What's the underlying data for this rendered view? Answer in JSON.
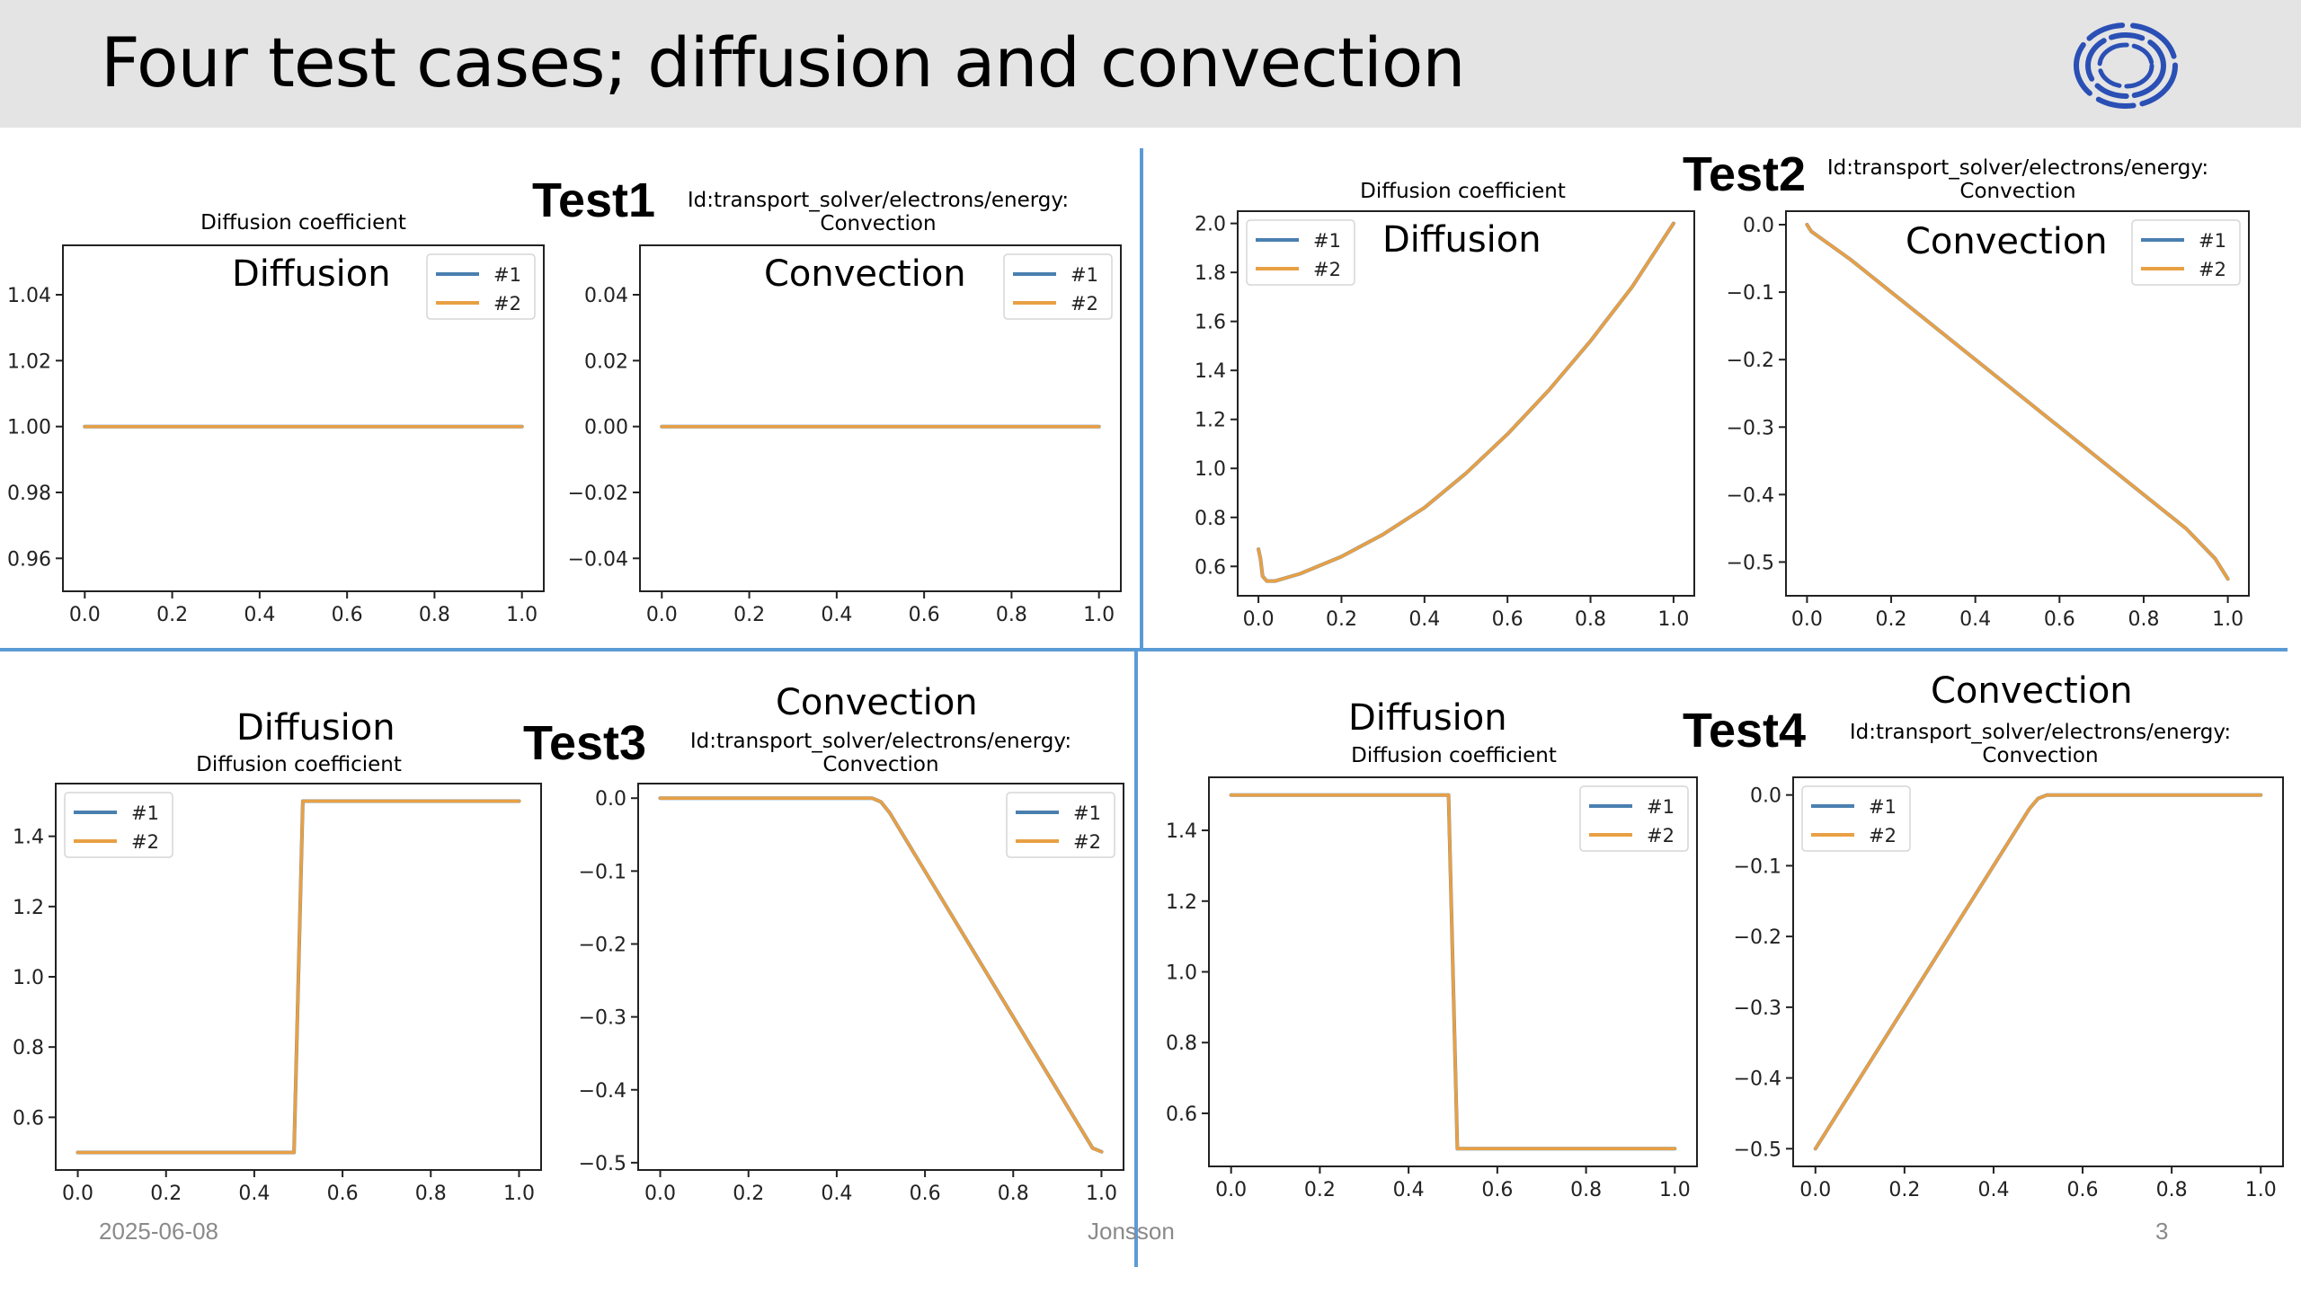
{
  "slide": {
    "title": "Four test cases; diffusion and convection",
    "footer_date": "2025-06-08",
    "footer_author": "Jonsson",
    "page_number": "3",
    "logo_icon": "ring-logo-icon",
    "accent_color": "#5b9bd5"
  },
  "quadrants": [
    {
      "test_label": "Test1",
      "diffusion_caption": "Diffusion coefficient",
      "diffusion_inlay": "Diffusion",
      "convection_inlay": "Convection",
      "convection_ids_line1": "Id:transport_solver/electrons/energy:",
      "convection_ids_line2": "Convection"
    },
    {
      "test_label": "Test2",
      "diffusion_caption": "Diffusion coefficient",
      "diffusion_inlay": "Diffusion",
      "convection_inlay": "Convection",
      "convection_ids_line1": "Id:transport_solver/electrons/energy:",
      "convection_ids_line2": "Convection"
    },
    {
      "test_label": "Test3",
      "diffusion_heading": "Diffusion",
      "diffusion_caption": "Diffusion coefficient",
      "convection_heading": "Convection",
      "convection_ids_line1": "Id:transport_solver/electrons/energy:",
      "convection_ids_line2": "Convection"
    },
    {
      "test_label": "Test4",
      "diffusion_heading": "Diffusion",
      "diffusion_caption": "Diffusion coefficient",
      "convection_heading": "Convection",
      "convection_ids_line1": "Id:transport_solver/electrons/energy:",
      "convection_ids_line2": "Convection"
    }
  ],
  "chart_data": [
    {
      "id": "t1_diff",
      "type": "line",
      "xlim": [
        -0.05,
        1.05
      ],
      "ylim": [
        0.95,
        1.055
      ],
      "xticks": [
        0.0,
        0.2,
        0.4,
        0.6,
        0.8,
        1.0
      ],
      "xtick_labels": [
        "0.0",
        "0.2",
        "0.4",
        "0.6",
        "0.8",
        "1.0"
      ],
      "yticks": [
        0.96,
        0.98,
        1.0,
        1.02,
        1.04
      ],
      "ytick_labels": [
        "0.96",
        "0.98",
        "1.00",
        "1.02",
        "1.04"
      ],
      "legend": [
        "#1",
        "#2"
      ],
      "legend_position": "top-right",
      "colors": [
        "#4a7fb0",
        "#e8a044"
      ],
      "series": [
        {
          "name": "#1",
          "x": [
            0,
            1
          ],
          "y": [
            1.0,
            1.0
          ]
        },
        {
          "name": "#2",
          "x": [
            0,
            1
          ],
          "y": [
            1.0,
            1.0
          ]
        }
      ]
    },
    {
      "id": "t1_conv",
      "type": "line",
      "xlim": [
        -0.05,
        1.05
      ],
      "ylim": [
        -0.05,
        0.055
      ],
      "xticks": [
        0.0,
        0.2,
        0.4,
        0.6,
        0.8,
        1.0
      ],
      "xtick_labels": [
        "0.0",
        "0.2",
        "0.4",
        "0.6",
        "0.8",
        "1.0"
      ],
      "yticks": [
        -0.04,
        -0.02,
        0.0,
        0.02,
        0.04
      ],
      "ytick_labels": [
        "−0.04",
        "−0.02",
        "0.00",
        "0.02",
        "0.04"
      ],
      "legend": [
        "#1",
        "#2"
      ],
      "legend_position": "top-right",
      "colors": [
        "#4a7fb0",
        "#e8a044"
      ],
      "series": [
        {
          "name": "#1",
          "x": [
            0,
            1
          ],
          "y": [
            0.0,
            0.0
          ]
        },
        {
          "name": "#2",
          "x": [
            0,
            1
          ],
          "y": [
            0.0,
            0.0
          ]
        }
      ]
    },
    {
      "id": "t2_diff",
      "type": "line",
      "xlim": [
        -0.05,
        1.05
      ],
      "ylim": [
        0.48,
        2.05
      ],
      "xticks": [
        0.0,
        0.2,
        0.4,
        0.6,
        0.8,
        1.0
      ],
      "xtick_labels": [
        "0.0",
        "0.2",
        "0.4",
        "0.6",
        "0.8",
        "1.0"
      ],
      "yticks": [
        0.6,
        0.8,
        1.0,
        1.2,
        1.4,
        1.6,
        1.8,
        2.0
      ],
      "ytick_labels": [
        "0.6",
        "0.8",
        "1.0",
        "1.2",
        "1.4",
        "1.6",
        "1.8",
        "2.0"
      ],
      "legend": [
        "#1",
        "#2"
      ],
      "legend_position": "top-left",
      "colors": [
        "#4a7fb0",
        "#e8a044"
      ],
      "series": [
        {
          "name": "#1",
          "x": [
            0.0,
            0.005,
            0.01,
            0.02,
            0.04,
            0.1,
            0.2,
            0.3,
            0.4,
            0.5,
            0.6,
            0.7,
            0.8,
            0.9,
            1.0
          ],
          "y": [
            0.67,
            0.63,
            0.56,
            0.54,
            0.54,
            0.57,
            0.64,
            0.73,
            0.84,
            0.98,
            1.14,
            1.32,
            1.52,
            1.74,
            2.0
          ]
        },
        {
          "name": "#2",
          "x": [
            0.0,
            0.005,
            0.01,
            0.02,
            0.04,
            0.1,
            0.2,
            0.3,
            0.4,
            0.5,
            0.6,
            0.7,
            0.8,
            0.9,
            1.0
          ],
          "y": [
            0.67,
            0.63,
            0.56,
            0.54,
            0.54,
            0.57,
            0.64,
            0.73,
            0.84,
            0.98,
            1.14,
            1.32,
            1.52,
            1.74,
            2.0
          ]
        }
      ]
    },
    {
      "id": "t2_conv",
      "type": "line",
      "xlim": [
        -0.05,
        1.05
      ],
      "ylim": [
        -0.55,
        0.02
      ],
      "xticks": [
        0.0,
        0.2,
        0.4,
        0.6,
        0.8,
        1.0
      ],
      "xtick_labels": [
        "0.0",
        "0.2",
        "0.4",
        "0.6",
        "0.8",
        "1.0"
      ],
      "yticks": [
        -0.5,
        -0.4,
        -0.3,
        -0.2,
        -0.1,
        0.0
      ],
      "ytick_labels": [
        "−0.5",
        "−0.4",
        "−0.3",
        "−0.2",
        "−0.1",
        "0.0"
      ],
      "legend": [
        "#1",
        "#2"
      ],
      "legend_position": "top-right",
      "colors": [
        "#4a7fb0",
        "#e8a044"
      ],
      "series": [
        {
          "name": "#1",
          "x": [
            0.0,
            0.01,
            0.1,
            0.3,
            0.5,
            0.7,
            0.9,
            0.97,
            1.0
          ],
          "y": [
            0.0,
            -0.01,
            -0.05,
            -0.15,
            -0.25,
            -0.35,
            -0.45,
            -0.495,
            -0.525
          ]
        },
        {
          "name": "#2",
          "x": [
            0.0,
            0.01,
            0.1,
            0.3,
            0.5,
            0.7,
            0.9,
            0.97,
            1.0
          ],
          "y": [
            0.0,
            -0.01,
            -0.05,
            -0.15,
            -0.25,
            -0.35,
            -0.45,
            -0.495,
            -0.525
          ]
        }
      ]
    },
    {
      "id": "t3_diff",
      "type": "line",
      "xlim": [
        -0.05,
        1.05
      ],
      "ylim": [
        0.45,
        1.55
      ],
      "xticks": [
        0.0,
        0.2,
        0.4,
        0.6,
        0.8,
        1.0
      ],
      "xtick_labels": [
        "0.0",
        "0.2",
        "0.4",
        "0.6",
        "0.8",
        "1.0"
      ],
      "yticks": [
        0.6,
        0.8,
        1.0,
        1.2,
        1.4
      ],
      "ytick_labels": [
        "0.6",
        "0.8",
        "1.0",
        "1.2",
        "1.4"
      ],
      "legend": [
        "#1",
        "#2"
      ],
      "legend_position": "top-left",
      "colors": [
        "#4a7fb0",
        "#e8a044"
      ],
      "series": [
        {
          "name": "#1",
          "x": [
            0.0,
            0.49,
            0.51,
            1.0
          ],
          "y": [
            0.5,
            0.5,
            1.5,
            1.5
          ]
        },
        {
          "name": "#2",
          "x": [
            0.0,
            0.49,
            0.51,
            1.0
          ],
          "y": [
            0.5,
            0.5,
            1.5,
            1.5
          ]
        }
      ]
    },
    {
      "id": "t3_conv",
      "type": "line",
      "xlim": [
        -0.05,
        1.05
      ],
      "ylim": [
        -0.51,
        0.02
      ],
      "xticks": [
        0.0,
        0.2,
        0.4,
        0.6,
        0.8,
        1.0
      ],
      "xtick_labels": [
        "0.0",
        "0.2",
        "0.4",
        "0.6",
        "0.8",
        "1.0"
      ],
      "yticks": [
        -0.5,
        -0.4,
        -0.3,
        -0.2,
        -0.1,
        0.0
      ],
      "ytick_labels": [
        "−0.5",
        "−0.4",
        "−0.3",
        "−0.2",
        "−0.1",
        "0.0"
      ],
      "legend": [
        "#1",
        "#2"
      ],
      "legend_position": "top-right",
      "colors": [
        "#4a7fb0",
        "#e8a044"
      ],
      "series": [
        {
          "name": "#1",
          "x": [
            0.0,
            0.48,
            0.5,
            0.52,
            0.98,
            1.0
          ],
          "y": [
            0.0,
            0.0,
            -0.005,
            -0.02,
            -0.48,
            -0.485
          ]
        },
        {
          "name": "#2",
          "x": [
            0.0,
            0.48,
            0.5,
            0.52,
            0.98,
            1.0
          ],
          "y": [
            0.0,
            0.0,
            -0.005,
            -0.02,
            -0.48,
            -0.485
          ]
        }
      ]
    },
    {
      "id": "t4_diff",
      "type": "line",
      "xlim": [
        -0.05,
        1.05
      ],
      "ylim": [
        0.45,
        1.55
      ],
      "xticks": [
        0.0,
        0.2,
        0.4,
        0.6,
        0.8,
        1.0
      ],
      "xtick_labels": [
        "0.0",
        "0.2",
        "0.4",
        "0.6",
        "0.8",
        "1.0"
      ],
      "yticks": [
        0.6,
        0.8,
        1.0,
        1.2,
        1.4
      ],
      "ytick_labels": [
        "0.6",
        "0.8",
        "1.0",
        "1.2",
        "1.4"
      ],
      "legend": [
        "#1",
        "#2"
      ],
      "legend_position": "top-right",
      "colors": [
        "#4a7fb0",
        "#e8a044"
      ],
      "series": [
        {
          "name": "#1",
          "x": [
            0.0,
            0.49,
            0.51,
            1.0
          ],
          "y": [
            1.5,
            1.5,
            0.5,
            0.5
          ]
        },
        {
          "name": "#2",
          "x": [
            0.0,
            0.49,
            0.51,
            1.0
          ],
          "y": [
            1.5,
            1.5,
            0.5,
            0.5
          ]
        }
      ]
    },
    {
      "id": "t4_conv",
      "type": "line",
      "xlim": [
        -0.05,
        1.05
      ],
      "ylim": [
        -0.525,
        0.025
      ],
      "xticks": [
        0.0,
        0.2,
        0.4,
        0.6,
        0.8,
        1.0
      ],
      "xtick_labels": [
        "0.0",
        "0.2",
        "0.4",
        "0.6",
        "0.8",
        "1.0"
      ],
      "yticks": [
        -0.5,
        -0.4,
        -0.3,
        -0.2,
        -0.1,
        0.0
      ],
      "ytick_labels": [
        "−0.5",
        "−0.4",
        "−0.3",
        "−0.2",
        "−0.1",
        "0.0"
      ],
      "legend": [
        "#1",
        "#2"
      ],
      "legend_position": "top-left",
      "colors": [
        "#4a7fb0",
        "#e8a044"
      ],
      "series": [
        {
          "name": "#1",
          "x": [
            0.0,
            0.48,
            0.5,
            0.52,
            1.0
          ],
          "y": [
            -0.5,
            -0.02,
            -0.005,
            0.0,
            0.0
          ]
        },
        {
          "name": "#2",
          "x": [
            0.0,
            0.48,
            0.5,
            0.52,
            1.0
          ],
          "y": [
            -0.5,
            -0.02,
            -0.005,
            0.0,
            0.0
          ]
        }
      ]
    }
  ]
}
